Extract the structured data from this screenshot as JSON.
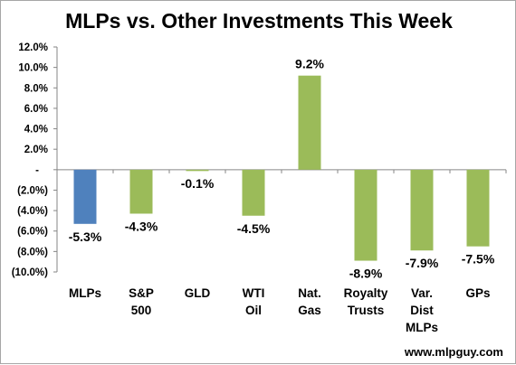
{
  "chart_data": {
    "type": "bar",
    "title": "MLPs vs. Other Investments This Week",
    "categories": [
      [
        "MLPs"
      ],
      [
        "S&P",
        "500"
      ],
      [
        "GLD"
      ],
      [
        "WTI",
        "Oil"
      ],
      [
        "Nat.",
        "Gas"
      ],
      [
        "Royalty",
        "Trusts"
      ],
      [
        "Var.",
        "Dist",
        "MLPs"
      ],
      [
        "GPs"
      ]
    ],
    "values": [
      -5.3,
      -4.3,
      -0.1,
      -4.5,
      9.2,
      -8.9,
      -7.9,
      -7.5
    ],
    "data_labels": [
      "-5.3%",
      "-4.3%",
      "-0.1%",
      "-4.5%",
      "9.2%",
      "-8.9%",
      "-7.9%",
      "-7.5%"
    ],
    "bar_colors": [
      "#4f81bd",
      "#9bbb59",
      "#9bbb59",
      "#9bbb59",
      "#9bbb59",
      "#9bbb59",
      "#9bbb59",
      "#9bbb59"
    ],
    "ylim": [
      -10,
      12
    ],
    "y_ticks": [
      12,
      10,
      8,
      6,
      4,
      2,
      0,
      -2,
      -4,
      -6,
      -8,
      -10
    ],
    "y_tick_labels": [
      "12.0%",
      "10.0%",
      "8.0%",
      "6.0%",
      "4.0%",
      "2.0%",
      "-",
      "(2.0%)",
      "(4.0%)",
      "(6.0%)",
      "(8.0%)",
      "(10.0%)"
    ],
    "grid": false,
    "legend": "none",
    "watermark": "www.mlpguy.com"
  }
}
